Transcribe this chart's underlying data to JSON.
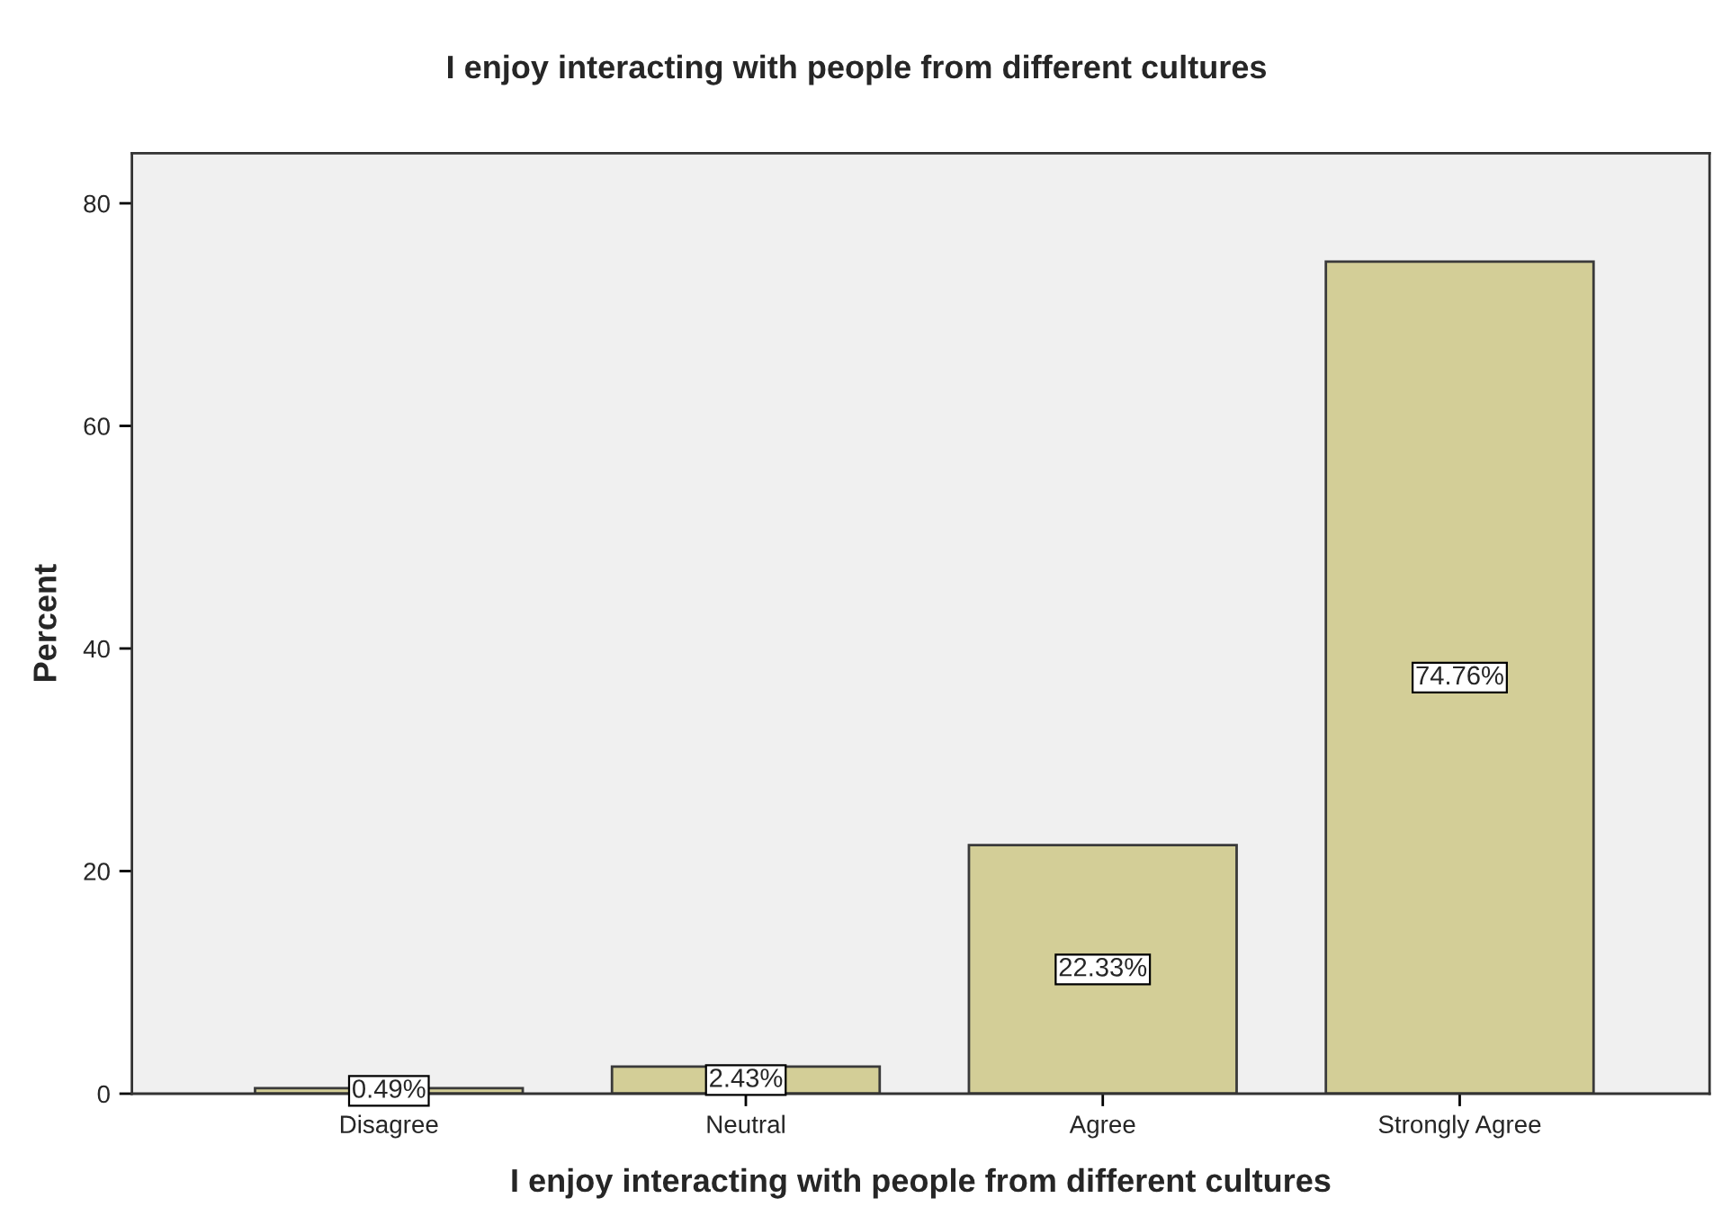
{
  "chart_data": {
    "type": "bar",
    "title": "I enjoy interacting with people from different cultures",
    "xlabel": "I enjoy interacting with people from different cultures",
    "ylabel": "Percent",
    "categories": [
      "Disagree",
      "Neutral",
      "Agree",
      "Strongly Agree"
    ],
    "values": [
      0.49,
      2.43,
      22.33,
      74.76
    ],
    "value_labels": [
      "0.49%",
      "2.43%",
      "22.33%",
      "74.76%"
    ],
    "color": "#d3ce97",
    "ylim": [
      0,
      84.5
    ],
    "yticks": [
      0,
      20,
      40,
      60,
      80
    ],
    "grid": false
  }
}
